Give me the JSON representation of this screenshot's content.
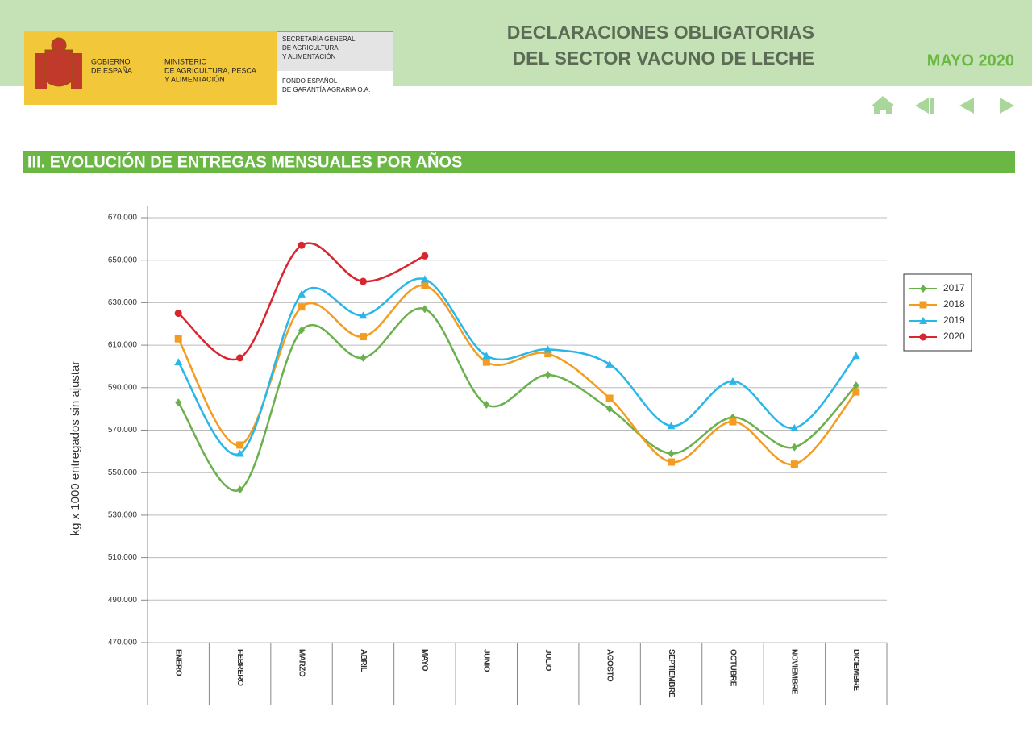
{
  "header": {
    "gov": [
      "GOBIERNO",
      "DE ESPAÑA"
    ],
    "ministry": [
      "MINISTERIO",
      "DE AGRICULTURA, PESCA",
      "Y ALIMENTACIÓN"
    ],
    "secretary": [
      "SECRETARÍA GENERAL",
      "DE AGRICULTURA",
      "Y ALIMENTACIÓN"
    ],
    "fund": [
      "FONDO ESPAÑOL",
      "DE GARANTÍA AGRARIA O.A."
    ],
    "title": [
      "DECLARACIONES OBLIGATORIAS",
      "DEL SECTOR VACUNO DE LECHE"
    ],
    "date": "MAYO 2020"
  },
  "section": "III. EVOLUCIÓN DE ENTREGAS MENSUALES POR AÑOS",
  "chart_data": {
    "type": "line",
    "y_label": "kg x 1000 entregados sin ajustar",
    "categories": [
      "ENERO",
      "FEBRERO",
      "MARZO",
      "ABRIL",
      "MAYO",
      "JUNIO",
      "JULIO",
      "AGOSTO",
      "SEPTIEMBRE",
      "OCTUBRE",
      "NOVIEMBRE",
      "DICIEMBRE"
    ],
    "series": [
      {
        "name": "2017",
        "color": "#6ab04c",
        "marker": "diamond",
        "values": [
          583000,
          542000,
          617000,
          604000,
          627000,
          582000,
          596000,
          580000,
          559000,
          576000,
          562000,
          591000
        ]
      },
      {
        "name": "2018",
        "color": "#f39c1f",
        "marker": "square",
        "values": [
          613000,
          563000,
          628000,
          614000,
          638000,
          602000,
          606000,
          585000,
          555000,
          574000,
          554000,
          588000
        ]
      },
      {
        "name": "2019",
        "color": "#29b6e8",
        "marker": "triangle",
        "values": [
          602000,
          559000,
          634000,
          624000,
          641000,
          605000,
          608000,
          601000,
          572000,
          593000,
          571000,
          605000
        ]
      },
      {
        "name": "2020",
        "color": "#d9262e",
        "marker": "circle",
        "values": [
          625000,
          604000,
          657000,
          640000,
          652000,
          null,
          null,
          null,
          null,
          null,
          null,
          null
        ]
      }
    ],
    "ylim": [
      470000,
      670000
    ],
    "yticks": [
      {
        "value": 470000,
        "label": "470.000"
      },
      {
        "value": 490000,
        "label": "490.000"
      },
      {
        "value": 510000,
        "label": "510.000"
      },
      {
        "value": 530000,
        "label": "530.000"
      },
      {
        "value": 550000,
        "label": "550.000"
      },
      {
        "value": 570000,
        "label": "570.000"
      },
      {
        "value": 590000,
        "label": "590.000"
      },
      {
        "value": 610000,
        "label": "610.000"
      },
      {
        "value": 630000,
        "label": "630.000"
      },
      {
        "value": 650000,
        "label": "650.000"
      },
      {
        "value": 670000,
        "label": "670.000"
      }
    ],
    "grid": true,
    "legend": "right"
  }
}
